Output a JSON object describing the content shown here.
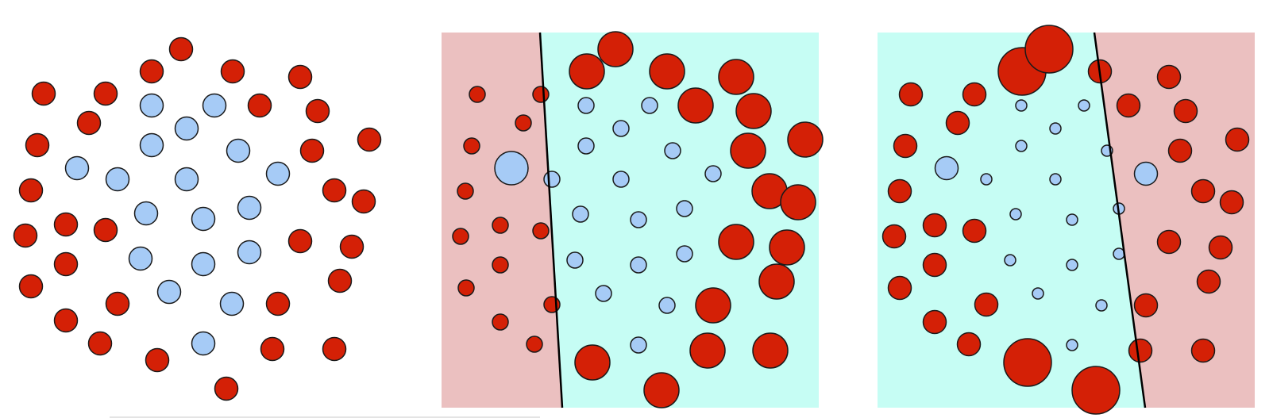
{
  "figure": {
    "description_hidden": "",
    "colors": {
      "red": "#d42006",
      "blue": "#a6cbf6",
      "stroke": "#1a1a1a",
      "region_pink": "#ebc0c0",
      "region_cyan": "#c6fdf4",
      "bg": "#ffffff"
    },
    "panels": [
      {
        "id": "panel-1",
        "title": "",
        "regions": []
      },
      {
        "id": "panel-2",
        "title": "",
        "regions": [
          {
            "side": "left",
            "color_key": "region_pink"
          },
          {
            "side": "right",
            "color_key": "region_cyan"
          }
        ]
      },
      {
        "id": "panel-3",
        "title": "",
        "regions": [
          {
            "side": "left",
            "color_key": "region_cyan"
          },
          {
            "side": "right",
            "color_key": "region_pink"
          }
        ]
      }
    ]
  }
}
